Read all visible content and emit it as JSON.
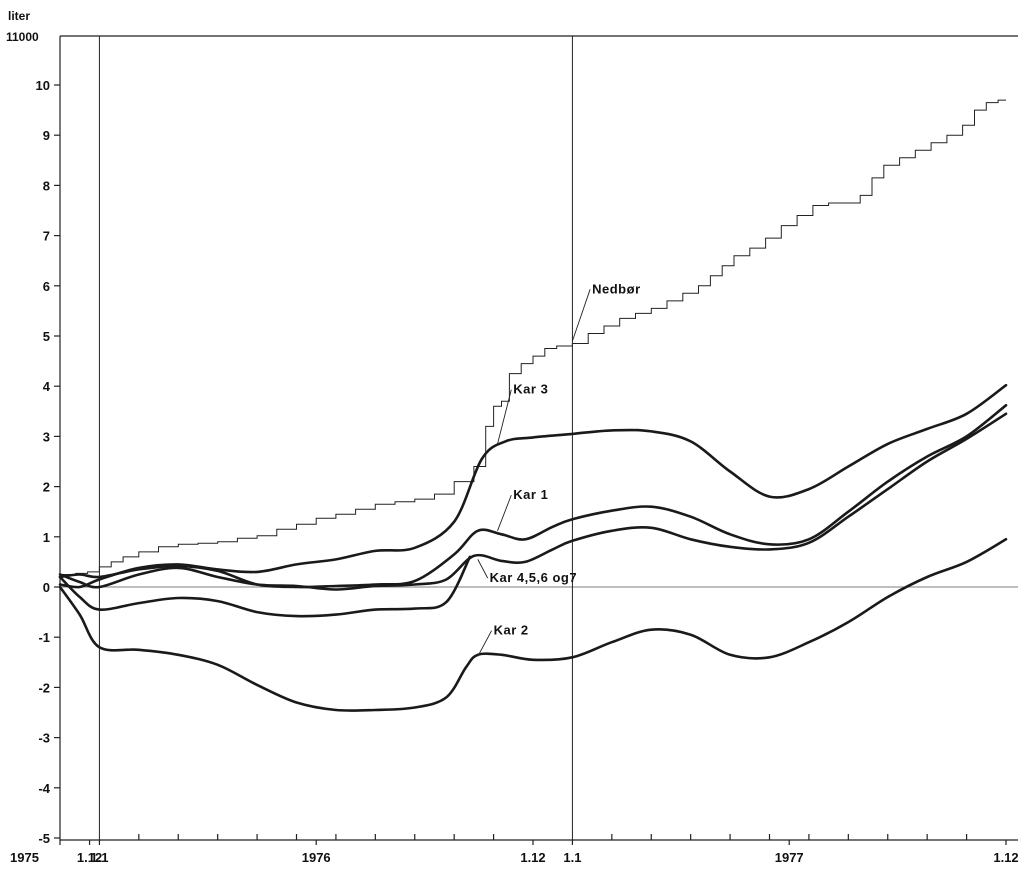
{
  "chart_data": {
    "type": "line",
    "ylabel": "liter",
    "y_top_label": "11000",
    "ylim": [
      -5,
      10.9
    ],
    "xlim": [
      -1,
      24.5
    ],
    "y_ticks": [
      {
        "v": 10,
        "label": "10"
      },
      {
        "v": 9,
        "label": "9"
      },
      {
        "v": 8,
        "label": "8"
      },
      {
        "v": 7,
        "label": "7"
      },
      {
        "v": 6,
        "label": "6"
      },
      {
        "v": 5,
        "label": "5"
      },
      {
        "v": 4,
        "label": "4"
      },
      {
        "v": 3,
        "label": "3"
      },
      {
        "v": 2,
        "label": "2"
      },
      {
        "v": 1,
        "label": "1"
      },
      {
        "v": 0,
        "label": "0"
      },
      {
        "v": -1,
        "label": "-1"
      },
      {
        "v": -2,
        "label": "-2"
      },
      {
        "v": -3,
        "label": "-3"
      },
      {
        "v": -4,
        "label": "-4"
      },
      {
        "v": -5,
        "label": "-5"
      }
    ],
    "x_tick_labels": [
      {
        "x": -1,
        "label": "1975"
      },
      {
        "x": -0.25,
        "label": "1.12"
      },
      {
        "x": 0,
        "label": "1.1"
      },
      {
        "x": 5.5,
        "label": "1976"
      },
      {
        "x": 11,
        "label": "1.12"
      },
      {
        "x": 12,
        "label": "1.1"
      },
      {
        "x": 17.5,
        "label": "1977"
      },
      {
        "x": 23,
        "label": "1.12"
      }
    ],
    "x_minor_ticks": [
      1,
      2,
      3,
      4,
      5,
      6,
      7,
      8,
      9,
      10,
      13,
      14,
      15,
      16,
      17,
      18,
      19,
      20,
      21,
      22
    ],
    "vertical_lines": [
      0,
      12
    ],
    "series": [
      {
        "name": "Nedbør",
        "style": "step",
        "points": [
          [
            -1,
            0.25
          ],
          [
            -0.6,
            0.27
          ],
          [
            -0.3,
            0.3
          ],
          [
            0,
            0.4
          ],
          [
            0.3,
            0.5
          ],
          [
            0.6,
            0.6
          ],
          [
            1,
            0.7
          ],
          [
            1.5,
            0.8
          ],
          [
            2,
            0.85
          ],
          [
            2.5,
            0.87
          ],
          [
            3,
            0.9
          ],
          [
            3.5,
            0.97
          ],
          [
            4,
            1.02
          ],
          [
            4.5,
            1.15
          ],
          [
            5,
            1.25
          ],
          [
            5.5,
            1.37
          ],
          [
            6,
            1.45
          ],
          [
            6.5,
            1.55
          ],
          [
            7,
            1.65
          ],
          [
            7.5,
            1.7
          ],
          [
            8,
            1.75
          ],
          [
            8.5,
            1.85
          ],
          [
            9,
            2.1
          ],
          [
            9.5,
            2.4
          ],
          [
            9.8,
            3.2
          ],
          [
            10,
            3.6
          ],
          [
            10.2,
            3.7
          ],
          [
            10.4,
            4.25
          ],
          [
            10.7,
            4.45
          ],
          [
            11,
            4.6
          ],
          [
            11.3,
            4.75
          ],
          [
            11.6,
            4.8
          ],
          [
            12,
            4.85
          ],
          [
            12.4,
            5.05
          ],
          [
            12.8,
            5.2
          ],
          [
            13.2,
            5.35
          ],
          [
            13.6,
            5.45
          ],
          [
            14,
            5.55
          ],
          [
            14.4,
            5.7
          ],
          [
            14.8,
            5.85
          ],
          [
            15.2,
            6.0
          ],
          [
            15.5,
            6.2
          ],
          [
            15.8,
            6.4
          ],
          [
            16.1,
            6.6
          ],
          [
            16.5,
            6.75
          ],
          [
            16.9,
            6.95
          ],
          [
            17.3,
            7.2
          ],
          [
            17.7,
            7.4
          ],
          [
            18.1,
            7.6
          ],
          [
            18.5,
            7.65
          ],
          [
            18.9,
            7.65
          ],
          [
            19.3,
            7.8
          ],
          [
            19.6,
            8.15
          ],
          [
            19.9,
            8.4
          ],
          [
            20.3,
            8.55
          ],
          [
            20.7,
            8.7
          ],
          [
            21.1,
            8.85
          ],
          [
            21.5,
            9.0
          ],
          [
            21.9,
            9.2
          ],
          [
            22.2,
            9.5
          ],
          [
            22.5,
            9.65
          ],
          [
            22.8,
            9.7
          ],
          [
            23,
            9.7
          ]
        ]
      },
      {
        "name": "Kar 3",
        "style": "curve",
        "points": [
          [
            -1,
            0.05
          ],
          [
            -0.5,
            0.0
          ],
          [
            0,
            0.15
          ],
          [
            1,
            0.38
          ],
          [
            2,
            0.45
          ],
          [
            3,
            0.35
          ],
          [
            4,
            0.3
          ],
          [
            5,
            0.45
          ],
          [
            6,
            0.55
          ],
          [
            7,
            0.72
          ],
          [
            8,
            0.78
          ],
          [
            9,
            1.3
          ],
          [
            9.7,
            2.55
          ],
          [
            10.3,
            2.9
          ],
          [
            11,
            2.98
          ],
          [
            12,
            3.05
          ],
          [
            13,
            3.12
          ],
          [
            14,
            3.1
          ],
          [
            15,
            2.9
          ],
          [
            16,
            2.3
          ],
          [
            17,
            1.8
          ],
          [
            18,
            1.95
          ],
          [
            19,
            2.4
          ],
          [
            20,
            2.85
          ],
          [
            21,
            3.15
          ],
          [
            22,
            3.45
          ],
          [
            23,
            4.02
          ]
        ]
      },
      {
        "name": "Kar 1",
        "style": "curve",
        "points": [
          [
            -1,
            0.2
          ],
          [
            -0.5,
            0.25
          ],
          [
            0,
            0.2
          ],
          [
            1,
            0.35
          ],
          [
            2,
            0.42
          ],
          [
            3,
            0.32
          ],
          [
            4,
            0.05
          ],
          [
            5,
            0.0
          ],
          [
            6,
            0.02
          ],
          [
            7,
            0.05
          ],
          [
            8,
            0.12
          ],
          [
            9,
            0.65
          ],
          [
            9.6,
            1.12
          ],
          [
            10.2,
            1.05
          ],
          [
            10.8,
            0.95
          ],
          [
            11.5,
            1.2
          ],
          [
            12,
            1.35
          ],
          [
            13,
            1.52
          ],
          [
            14,
            1.6
          ],
          [
            15,
            1.4
          ],
          [
            16,
            1.05
          ],
          [
            17,
            0.85
          ],
          [
            18,
            0.95
          ],
          [
            19,
            1.5
          ],
          [
            20,
            2.1
          ],
          [
            21,
            2.6
          ],
          [
            22,
            3.0
          ],
          [
            23,
            3.62
          ]
        ]
      },
      {
        "name": "Kar 4,5,6 og 7",
        "style": "curve",
        "points": [
          [
            -1,
            0.25
          ],
          [
            -0.5,
            0.1
          ],
          [
            0,
            0.0
          ],
          [
            1,
            0.25
          ],
          [
            2,
            0.38
          ],
          [
            3,
            0.2
          ],
          [
            4,
            0.05
          ],
          [
            5,
            0.02
          ],
          [
            6,
            -0.05
          ],
          [
            7,
            0.02
          ],
          [
            8,
            0.05
          ],
          [
            8.8,
            0.15
          ],
          [
            9.5,
            0.62
          ],
          [
            10.2,
            0.52
          ],
          [
            10.8,
            0.5
          ],
          [
            11.5,
            0.75
          ],
          [
            12,
            0.92
          ],
          [
            13,
            1.12
          ],
          [
            14,
            1.18
          ],
          [
            15,
            0.95
          ],
          [
            16,
            0.8
          ],
          [
            17,
            0.75
          ],
          [
            18,
            0.88
          ],
          [
            19,
            1.4
          ],
          [
            20,
            1.95
          ],
          [
            21,
            2.5
          ],
          [
            22,
            2.95
          ],
          [
            23,
            3.45
          ]
        ]
      },
      {
        "name": "Kar 2",
        "style": "curve",
        "points": [
          [
            -1,
            0.0
          ],
          [
            -0.5,
            -0.55
          ],
          [
            0,
            -1.2
          ],
          [
            1,
            -1.25
          ],
          [
            2,
            -1.35
          ],
          [
            3,
            -1.55
          ],
          [
            4,
            -1.95
          ],
          [
            5,
            -2.3
          ],
          [
            6,
            -2.45
          ],
          [
            7,
            -2.45
          ],
          [
            8,
            -2.4
          ],
          [
            8.8,
            -2.2
          ],
          [
            9.3,
            -1.6
          ],
          [
            9.6,
            -1.35
          ],
          [
            10.2,
            -1.35
          ],
          [
            11,
            -1.45
          ],
          [
            12,
            -1.4
          ],
          [
            13,
            -1.1
          ],
          [
            14,
            -0.85
          ],
          [
            15,
            -0.95
          ],
          [
            16,
            -1.35
          ],
          [
            17,
            -1.4
          ],
          [
            18,
            -1.1
          ],
          [
            19,
            -0.7
          ],
          [
            20,
            -0.2
          ],
          [
            21,
            0.2
          ],
          [
            22,
            0.5
          ],
          [
            23,
            0.95
          ]
        ]
      },
      {
        "name": "",
        "style": "curve",
        "points": [
          [
            -1,
            0.2
          ],
          [
            -0.5,
            -0.2
          ],
          [
            0,
            -0.45
          ],
          [
            1,
            -0.32
          ],
          [
            2,
            -0.22
          ],
          [
            3,
            -0.28
          ],
          [
            4,
            -0.5
          ],
          [
            5,
            -0.58
          ],
          [
            6,
            -0.55
          ],
          [
            7,
            -0.45
          ],
          [
            8,
            -0.43
          ],
          [
            8.8,
            -0.3
          ],
          [
            9.4,
            0.6
          ]
        ]
      }
    ],
    "labels": [
      {
        "text": "Nedbør",
        "x": 12.5,
        "y": 5.85,
        "anchor_x": 12,
        "anchor_y": 4.9
      },
      {
        "text": "Kar  3",
        "x": 10.5,
        "y": 3.85,
        "anchor_x": 10.1,
        "anchor_y": 2.85
      },
      {
        "text": "Kar  1",
        "x": 10.5,
        "y": 1.75,
        "anchor_x": 10.1,
        "anchor_y": 1.12
      },
      {
        "text": "Kar 4,5,6 og7",
        "x": 9.9,
        "y": 0.1,
        "anchor_x": 9.6,
        "anchor_y": 0.55
      },
      {
        "text": "Kar 2",
        "x": 10.0,
        "y": -0.95,
        "anchor_x": 9.6,
        "anchor_y": -1.38
      }
    ]
  }
}
